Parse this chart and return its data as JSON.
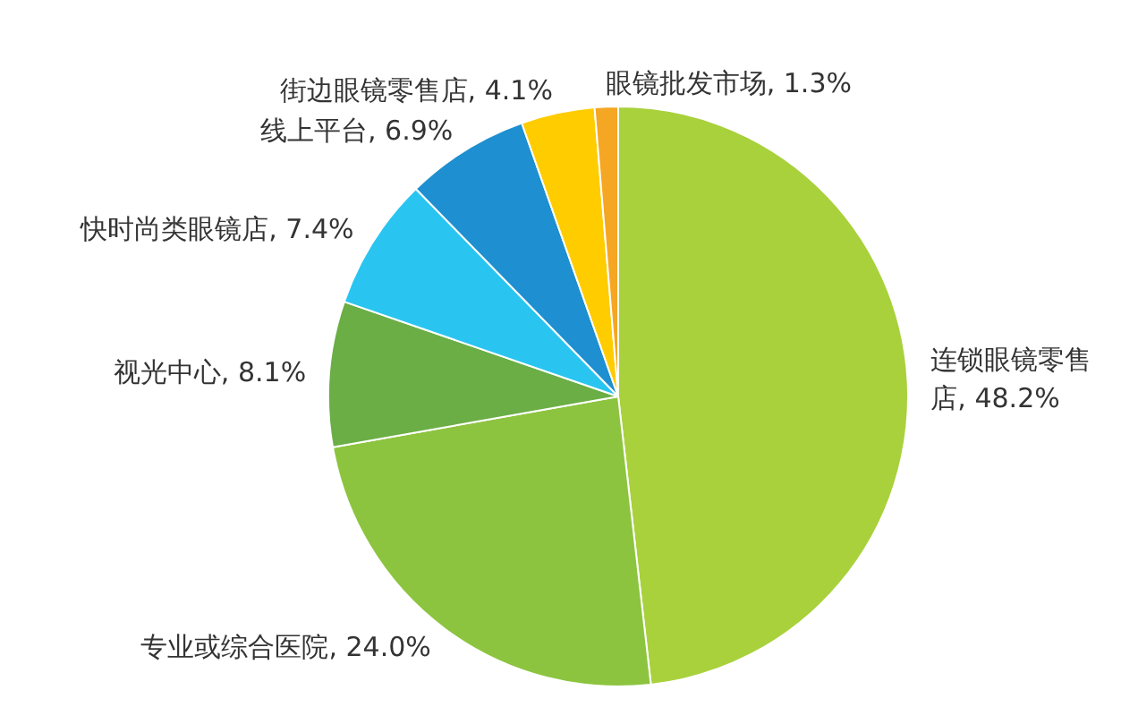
{
  "chart_data": {
    "type": "pie",
    "categories": [
      "连锁眼镜零售店",
      "专业或综合医院",
      "视光中心",
      "快时尚类眼镜店",
      "线上平台",
      "街边眼镜零售店",
      "眼镜批发市场"
    ],
    "values": [
      48.2,
      24.0,
      8.1,
      7.4,
      6.9,
      4.1,
      1.3
    ],
    "colors": [
      "#a8d13b",
      "#8cc43f",
      "#6aae45",
      "#29c5f0",
      "#1e8fd0",
      "#ffcc00",
      "#f5a623"
    ],
    "value_labels": [
      "48.2%",
      "24.0%",
      "8.1%",
      "7.4%",
      "6.9%",
      "4.1%",
      "1.3%"
    ]
  }
}
